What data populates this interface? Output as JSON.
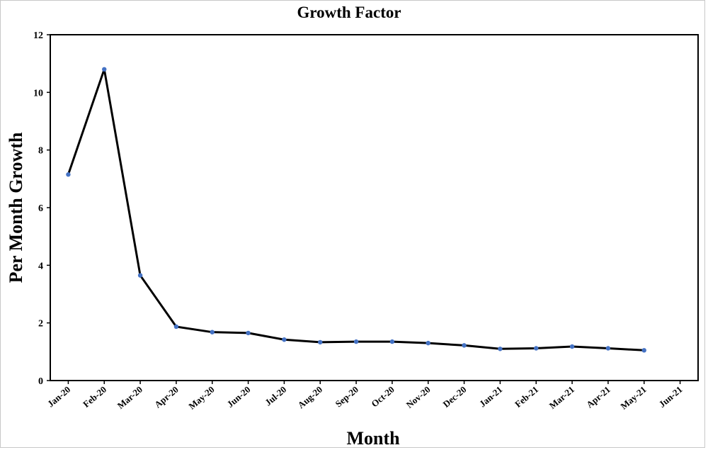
{
  "chart_data": {
    "type": "line",
    "title": "Growth Factor",
    "xlabel": "Month",
    "ylabel": "Per Month Growth",
    "categories": [
      "Jan-20",
      "Feb-20",
      "Mar-20",
      "Apr-20",
      "May-20",
      "Jun-20",
      "Jul-20",
      "Aug-20",
      "Sep-20",
      "Oct-20",
      "Nov-20",
      "Dec-20",
      "Jan-21",
      "Feb-21",
      "Mar-21",
      "Apr-21",
      "May-21",
      "Jun-21"
    ],
    "series": [
      {
        "values": [
          7.15,
          10.8,
          3.65,
          1.87,
          1.68,
          1.65,
          1.42,
          1.33,
          1.35,
          1.35,
          1.3,
          1.22,
          1.1,
          1.12,
          1.18,
          1.12,
          1.05,
          null
        ],
        "color": "#000000",
        "marker_color": "#4472C4"
      }
    ],
    "ylim": [
      0,
      12
    ],
    "yticks": [
      0,
      2,
      4,
      6,
      8,
      10,
      12
    ],
    "grid": false,
    "legend": "none"
  }
}
